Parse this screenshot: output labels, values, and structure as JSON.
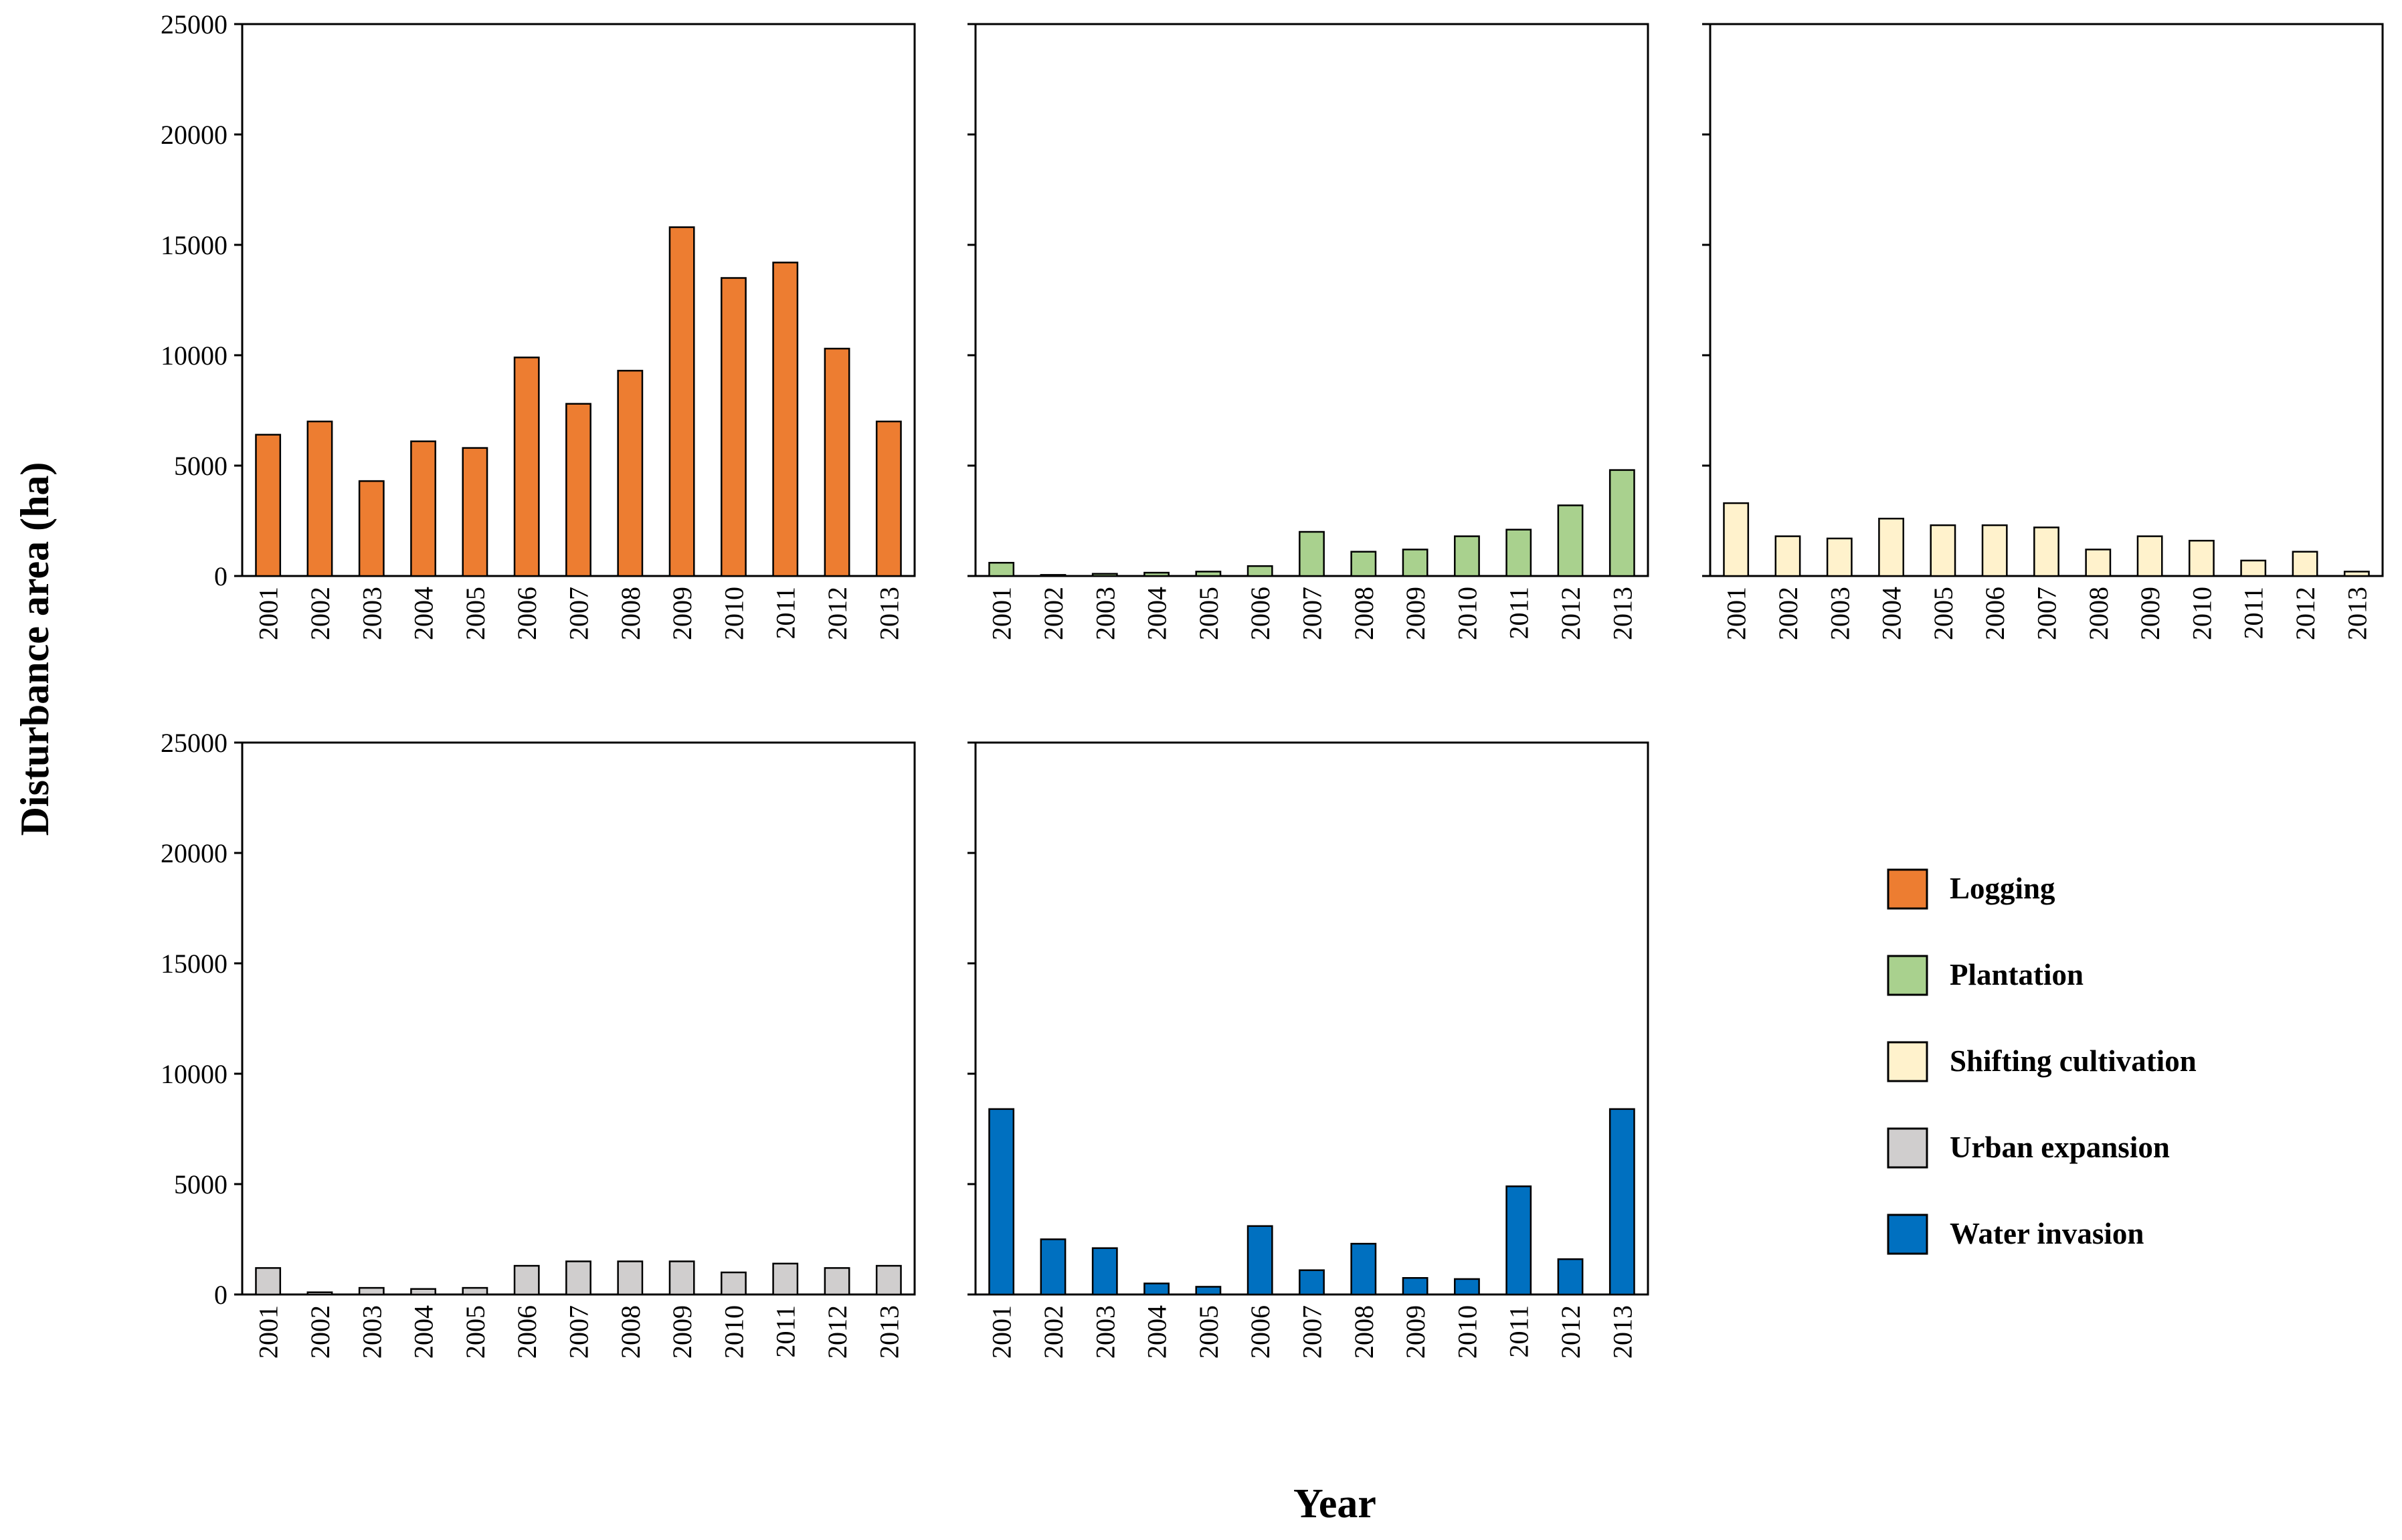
{
  "chart_data": {
    "type": "bar",
    "ylabel": "Disturbance area (ha)",
    "xlabel": "Year",
    "ylim": [
      0,
      25000
    ],
    "yticks": [
      "0",
      "5000",
      "10000",
      "15000",
      "20000",
      "25000"
    ],
    "categories": [
      "2001",
      "2002",
      "2003",
      "2004",
      "2005",
      "2006",
      "2007",
      "2008",
      "2009",
      "2010",
      "2011",
      "2012",
      "2013"
    ],
    "legend_position": "bottom-right",
    "series": [
      {
        "name": "Logging",
        "color": "#ED7D31",
        "values": [
          6400,
          7000,
          4300,
          6100,
          5800,
          9900,
          7800,
          9300,
          15800,
          13500,
          14200,
          10300,
          7000
        ]
      },
      {
        "name": "Plantation",
        "color": "#A9D18E",
        "values": [
          600,
          50,
          100,
          150,
          200,
          450,
          2000,
          1100,
          1200,
          1800,
          2100,
          3200,
          4800
        ]
      },
      {
        "name": "Shifting cultivation",
        "color": "#FFF2CC",
        "values": [
          3300,
          1800,
          1700,
          2600,
          2300,
          2300,
          2200,
          1200,
          1800,
          1600,
          700,
          1100,
          200
        ]
      },
      {
        "name": "Urban expansion",
        "color": "#D0CECE",
        "values": [
          1200,
          100,
          300,
          250,
          300,
          1300,
          1500,
          1500,
          1500,
          1000,
          1400,
          1200,
          1300
        ]
      },
      {
        "name": "Water invasion",
        "color": "#0070C0",
        "values": [
          8400,
          2500,
          2100,
          500,
          350,
          3100,
          1100,
          2300,
          750,
          700,
          4900,
          1600,
          8400
        ]
      }
    ]
  }
}
